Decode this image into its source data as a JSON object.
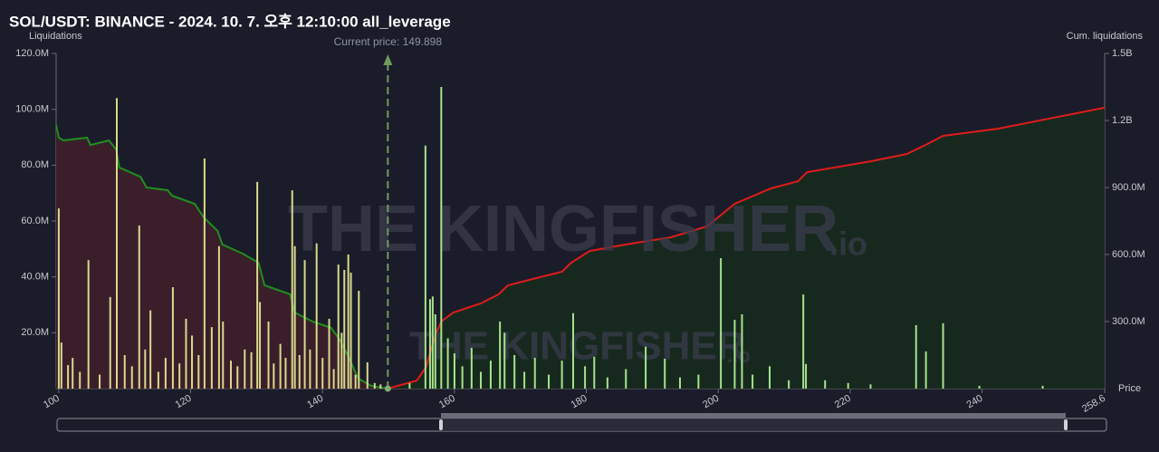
{
  "chart_data": {
    "type": "bar",
    "title": "SOL/USDT: BINANCE - 2024. 10. 7. 오후 12:10:00 all_leverage",
    "ylabel": "Liquidations",
    "y2label": "Cum. liquidations",
    "xlabel": "Price",
    "watermark": "THE KINGFISHER",
    "watermark_suffix": ".io",
    "current_price": {
      "value": 149.898,
      "label": "Current price: 149.898"
    },
    "xlim": [
      99.6,
      258.6
    ],
    "xticks": [
      100,
      120,
      140,
      160,
      180,
      200,
      220,
      240,
      258.6
    ],
    "ylim": [
      0,
      120
    ],
    "yticks": [
      {
        "value": 20,
        "label": "20.0M"
      },
      {
        "value": 40,
        "label": "40.0M"
      },
      {
        "value": 60,
        "label": "60.0M"
      },
      {
        "value": 80,
        "label": "80.0M"
      },
      {
        "value": 100,
        "label": "100.0M"
      },
      {
        "value": 120,
        "label": "120.0M"
      }
    ],
    "y2lim": [
      0,
      1500
    ],
    "y2ticks": [
      {
        "value": 300,
        "label": "300.0M"
      },
      {
        "value": 600,
        "label": "600.0M"
      },
      {
        "value": 900,
        "label": "900.0M"
      },
      {
        "value": 1200,
        "label": "1.2B"
      },
      {
        "value": 1500,
        "label": "1.5B"
      }
    ],
    "series": [
      {
        "type": "bar",
        "color": "#d9d98c",
        "x": [
          100.0,
          100.4,
          101.4,
          102.1,
          103.2,
          104.5,
          106.2,
          107.8,
          108.8,
          110.0,
          111.1,
          112.2,
          113.1,
          113.9,
          115.1,
          116.2,
          117.3,
          118.3,
          119.3,
          120.2,
          121.2,
          122.1,
          123.2,
          124.3,
          124.9,
          126.1,
          127.1,
          128.2,
          129.2,
          130.1,
          130.5,
          131.8,
          132.6,
          133.6,
          134.4,
          135.4,
          135.8,
          136.5,
          137.3,
          138.1,
          139.1,
          140.0,
          141.0,
          141.7,
          142.4,
          142.9,
          143.3,
          143.9,
          144.3,
          145.0,
          145.5,
          146.8,
          147.9,
          148.8
        ],
        "values": [
          64.5,
          16.5,
          8.4,
          11,
          6,
          46,
          5,
          32.8,
          104,
          12,
          8,
          58.4,
          14,
          28,
          6,
          11,
          36.3,
          9,
          25,
          19,
          12,
          82.4,
          22,
          51,
          24,
          10,
          8,
          14,
          13,
          74,
          31,
          24,
          9,
          16,
          11,
          71,
          51,
          12,
          46,
          14,
          52,
          11,
          25,
          7,
          44.4,
          20,
          42.5,
          48,
          41.5,
          5,
          35,
          9.4,
          2,
          1.5
        ]
      },
      {
        "type": "bar",
        "color": "#a6e38c",
        "x": [
          153.2,
          155.6,
          156.3,
          156.7,
          157.1,
          158.0,
          159.0,
          160.0,
          161.2,
          162.6,
          164.0,
          165.5,
          166.9,
          167.6,
          169.1,
          170.6,
          172.2,
          174.3,
          176.3,
          178.0,
          179.8,
          181.2,
          183.2,
          186.0,
          189.0,
          191.9,
          194.2,
          197.0,
          200.4,
          202.5,
          203.6,
          205.2,
          207.8,
          210.7,
          212.9,
          213.3,
          216.2,
          219.7,
          223.1,
          230.0,
          231.5,
          234.1,
          239.6,
          249.2
        ],
        "values": [
          2,
          87,
          32,
          33,
          26.6,
          108,
          18,
          12.6,
          8,
          14.6,
          6,
          10,
          24,
          20,
          12,
          6,
          11,
          5,
          10,
          27,
          8,
          11.4,
          4,
          7,
          15,
          10.7,
          4,
          5,
          46.7,
          24.6,
          26.6,
          5,
          8,
          3,
          33.7,
          8.8,
          3,
          2,
          1.5,
          22.7,
          13.3,
          23.4,
          1,
          1
        ]
      },
      {
        "type": "line",
        "axis": "y2",
        "color": "#1f8f1f",
        "fill": "#3a1f2b",
        "x": [
          99.6,
          100,
          100.7,
          104.3,
          104.8,
          107.6,
          108.7,
          109.2,
          112.4,
          113.3,
          116.5,
          117.2,
          120.6,
          122.0,
          124.1,
          124.8,
          127.9,
          130.3,
          131.2,
          135.1,
          135.8,
          138.5,
          141.3,
          142.6,
          144.0,
          145.4,
          147.4,
          149.898
        ],
        "values": [
          1180,
          1123,
          1111,
          1123,
          1090,
          1111,
          1070,
          989,
          948,
          900,
          888,
          863,
          827,
          766,
          705,
          645,
          604,
          563,
          462,
          422,
          340,
          300,
          272,
          219,
          138,
          45,
          12,
          0
        ]
      },
      {
        "type": "line",
        "axis": "y2",
        "color": "#e01b1b",
        "fill": "#17291f",
        "x": [
          149.898,
          154.3,
          155.7,
          157.1,
          158.0,
          159.8,
          164.0,
          166.7,
          168.1,
          173.6,
          176.3,
          177.7,
          180.5,
          186.0,
          192.8,
          198.3,
          202.5,
          208.0,
          212.1,
          213.5,
          223.1,
          228.6,
          231.4,
          234.1,
          242.4,
          258.6
        ],
        "values": [
          0,
          36,
          97,
          239,
          300,
          340,
          381,
          422,
          462,
          503,
          523,
          563,
          616,
          645,
          677,
          726,
          827,
          896,
          928,
          969,
          1017,
          1050,
          1090,
          1131,
          1163,
          1257
        ]
      }
    ]
  }
}
